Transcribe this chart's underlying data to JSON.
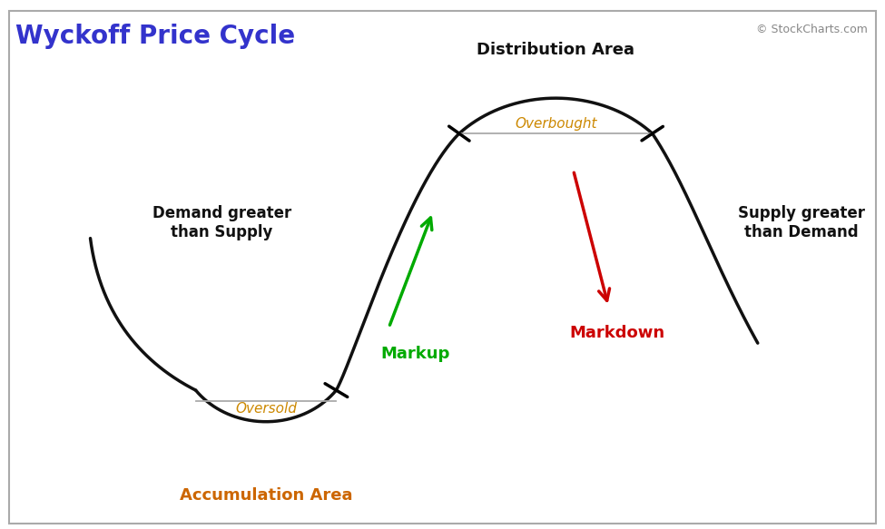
{
  "title": "Wyckoff Price Cycle",
  "title_color": "#3333cc",
  "title_fontsize": 20,
  "watermark": "© StockCharts.com",
  "watermark_color": "#888888",
  "background_color": "#ffffff",
  "labels": {
    "distribution_area": "Distribution Area",
    "accumulation_area": "Accumulation Area",
    "overbought": "Overbought",
    "oversold": "Oversold",
    "markup": "Markup",
    "markdown": "Markdown",
    "demand_greater": "Demand greater\nthan Supply",
    "supply_greater": "Supply greater\nthan Demand"
  },
  "colors": {
    "curve": "#111111",
    "overbought_line": "#aaaaaa",
    "oversold_line": "#aaaaaa",
    "markup_arrow": "#00aa00",
    "markdown_arrow": "#cc0000",
    "markup_label": "#00aa00",
    "markdown_label": "#cc0000",
    "oversold_text": "#cc8800",
    "overbought_text": "#cc8800",
    "text_dark": "#111111",
    "accumulation_text": "#cc6600",
    "distribution_text": "#111111"
  },
  "border_color": "#aaaaaa"
}
